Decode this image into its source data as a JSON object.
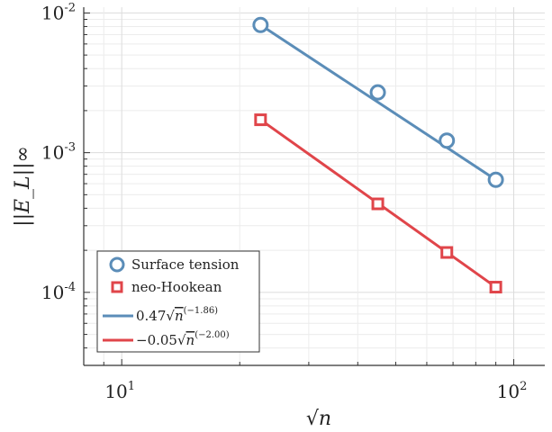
{
  "chart_data": {
    "type": "line",
    "xscale": "log",
    "yscale": "log",
    "xlim": [
      8,
      120
    ],
    "ylim": [
      3e-05,
      0.011
    ],
    "grid": true,
    "xlabel": "√n",
    "ylabel": "||E_L||∞",
    "xticks": [
      {
        "value": 10,
        "base": "10",
        "exp": "1"
      },
      {
        "value": 100,
        "base": "10",
        "exp": "2"
      }
    ],
    "yticks": [
      {
        "value": 0.0001,
        "base": "10",
        "exp": "-4"
      },
      {
        "value": 0.001,
        "base": "10",
        "exp": "-3"
      },
      {
        "value": 0.01,
        "base": "10",
        "exp": "-2"
      }
    ],
    "legend_position": "bottom-left",
    "series": [
      {
        "name": "Surface tension",
        "kind": "marker",
        "marker": "circle",
        "color": "#5b8db8",
        "x": [
          22.6,
          45,
          67.5,
          90
        ],
        "y": [
          0.0082,
          0.0027,
          0.00122,
          0.00064
        ]
      },
      {
        "name": "neo-Hookean",
        "kind": "marker",
        "marker": "square",
        "color": "#e0454a",
        "x": [
          22.6,
          45,
          67.5,
          90
        ],
        "y": [
          0.00172,
          0.00043,
          0.000193,
          0.000109
        ]
      },
      {
        "name": "0.47√n^(−1.86)",
        "legend_pre": "0.47",
        "legend_mid": "√",
        "legend_var": "n",
        "legend_sup": "(−1.86)",
        "kind": "line",
        "color": "#5b8db8",
        "x": [
          22.6,
          90
        ],
        "y": [
          0.0082,
          0.00064
        ]
      },
      {
        "name": "−0.05√n^(−2.00)",
        "legend_pre": "−0.05",
        "legend_mid": "√",
        "legend_var": "n",
        "legend_sup": "(−2.00)",
        "kind": "line",
        "color": "#e0454a",
        "x": [
          22.6,
          90
        ],
        "y": [
          0.00172,
          0.000109
        ]
      }
    ]
  }
}
